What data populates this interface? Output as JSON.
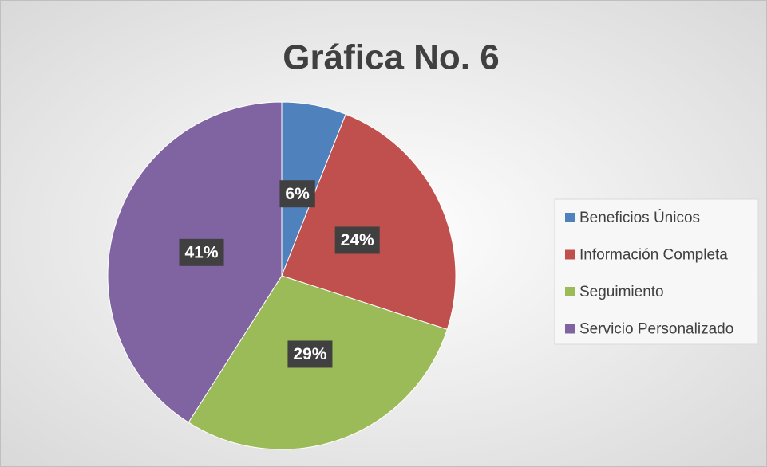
{
  "chart_data": {
    "type": "pie",
    "title": "Gráfica No. 6",
    "categories": [
      "Beneficios Únicos",
      "Información Completa",
      "Seguimiento",
      "Servicio Personalizado"
    ],
    "values": [
      6,
      24,
      29,
      41
    ],
    "value_labels": [
      "6%",
      "24%",
      "29%",
      "41%"
    ],
    "colors": [
      "#4f81bd",
      "#c0504d",
      "#9bbb59",
      "#8064a2"
    ],
    "legend": "right"
  }
}
